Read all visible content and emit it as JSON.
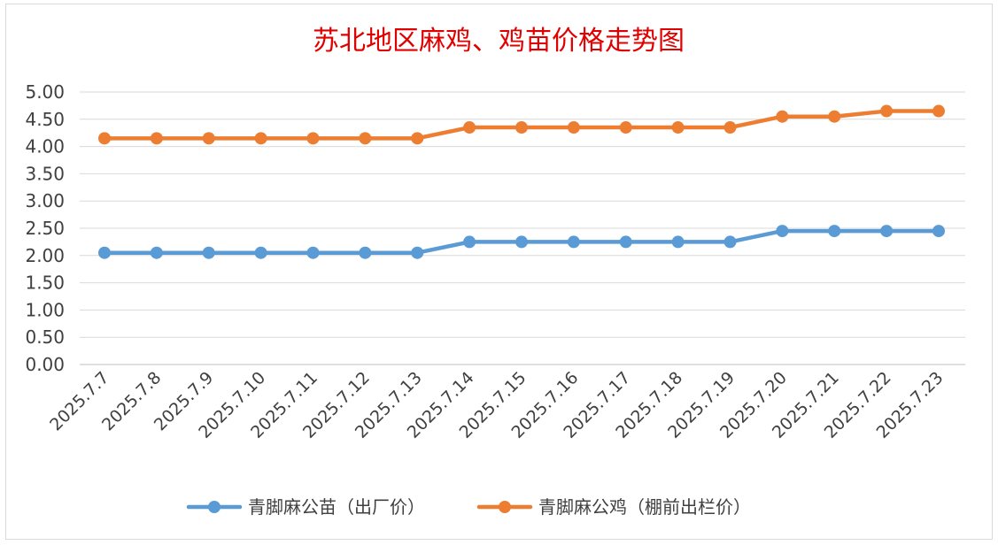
{
  "chart_data": {
    "type": "line",
    "title": "苏北地区麻鸡、鸡苗价格走势图",
    "xlabel": "",
    "ylabel": "",
    "categories": [
      "2025.7.7",
      "2025.7.8",
      "2025.7.9",
      "2025.7.10",
      "2025.7.11",
      "2025.7.12",
      "2025.7.13",
      "2025.7.14",
      "2025.7.15",
      "2025.7.16",
      "2025.7.17",
      "2025.7.18",
      "2025.7.19",
      "2025.7.20",
      "2025.7.21",
      "2025.7.22",
      "2025.7.23"
    ],
    "series": [
      {
        "name": "青脚麻公苗（出厂价）",
        "color": "#5b9bd5",
        "values": [
          2.05,
          2.05,
          2.05,
          2.05,
          2.05,
          2.05,
          2.05,
          2.25,
          2.25,
          2.25,
          2.25,
          2.25,
          2.25,
          2.45,
          2.45,
          2.45,
          2.45
        ]
      },
      {
        "name": "青脚麻公鸡（棚前出栏价）",
        "color": "#ed7d31",
        "values": [
          4.15,
          4.15,
          4.15,
          4.15,
          4.15,
          4.15,
          4.15,
          4.35,
          4.35,
          4.35,
          4.35,
          4.35,
          4.35,
          4.55,
          4.55,
          4.65,
          4.65
        ]
      }
    ],
    "ylim": [
      0,
      5
    ],
    "yticks": [
      "0.00",
      "0.50",
      "1.00",
      "1.50",
      "2.00",
      "2.50",
      "3.00",
      "3.50",
      "4.00",
      "4.50",
      "5.00"
    ],
    "grid": true,
    "legend": "bottom-center"
  }
}
